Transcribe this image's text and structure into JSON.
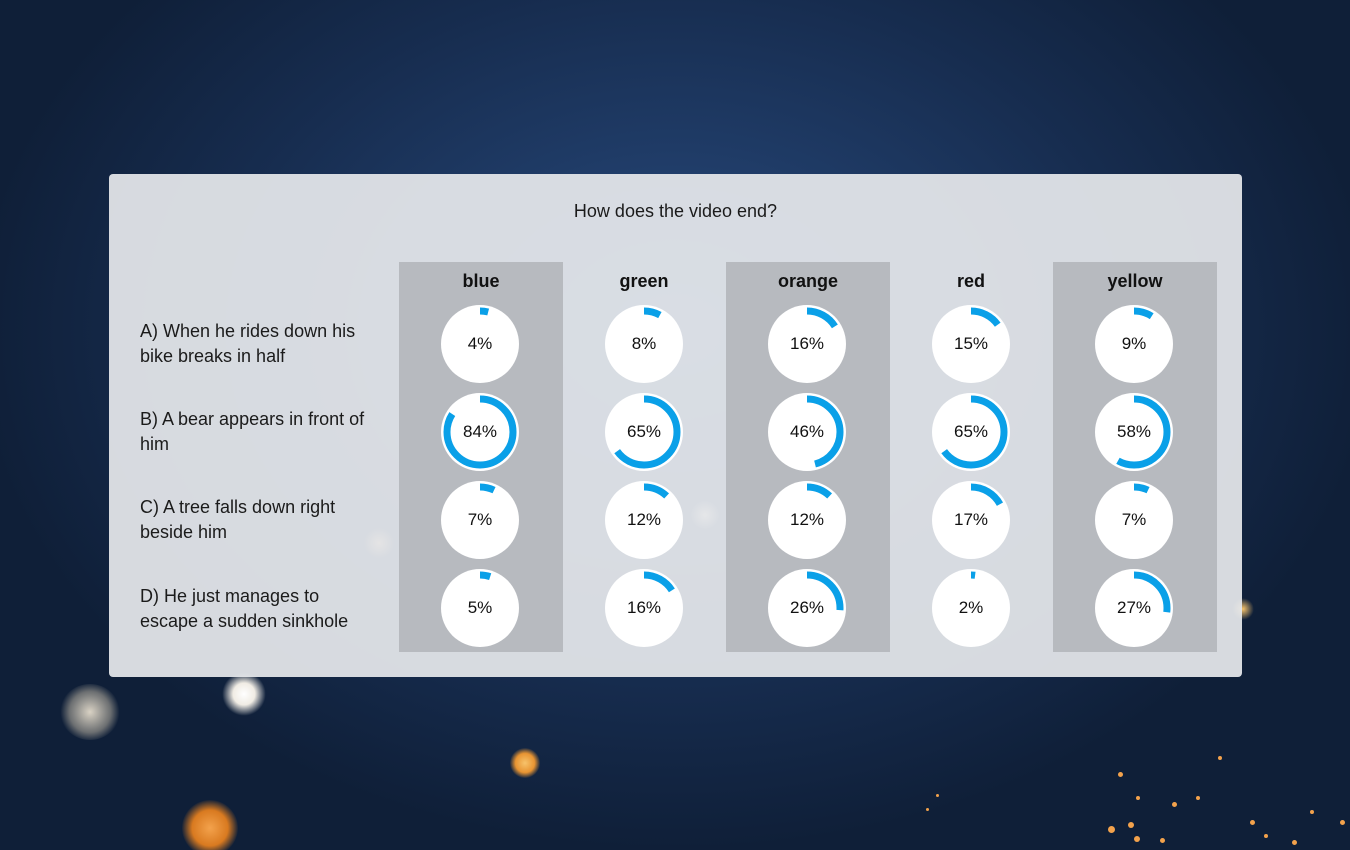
{
  "question": "How does the video end?",
  "colors": {
    "accent": "#0aa0e8",
    "ring_track": "#ffffff",
    "panel": "#e6e8ec",
    "column_shade": "#b7babf"
  },
  "columns": [
    "blue",
    "green",
    "orange",
    "red",
    "yellow"
  ],
  "rows": [
    {
      "label": "A) When he rides down his bike breaks in half",
      "values": [
        4,
        8,
        16,
        15,
        9
      ]
    },
    {
      "label": "B) A bear appears in front of him",
      "values": [
        84,
        65,
        46,
        65,
        58
      ]
    },
    {
      "label": "C) A tree falls down right beside him",
      "values": [
        7,
        12,
        12,
        17,
        7
      ]
    },
    {
      "label": "D) He just manages to escape a sudden sinkhole",
      "values": [
        5,
        16,
        26,
        2,
        27
      ]
    }
  ]
}
